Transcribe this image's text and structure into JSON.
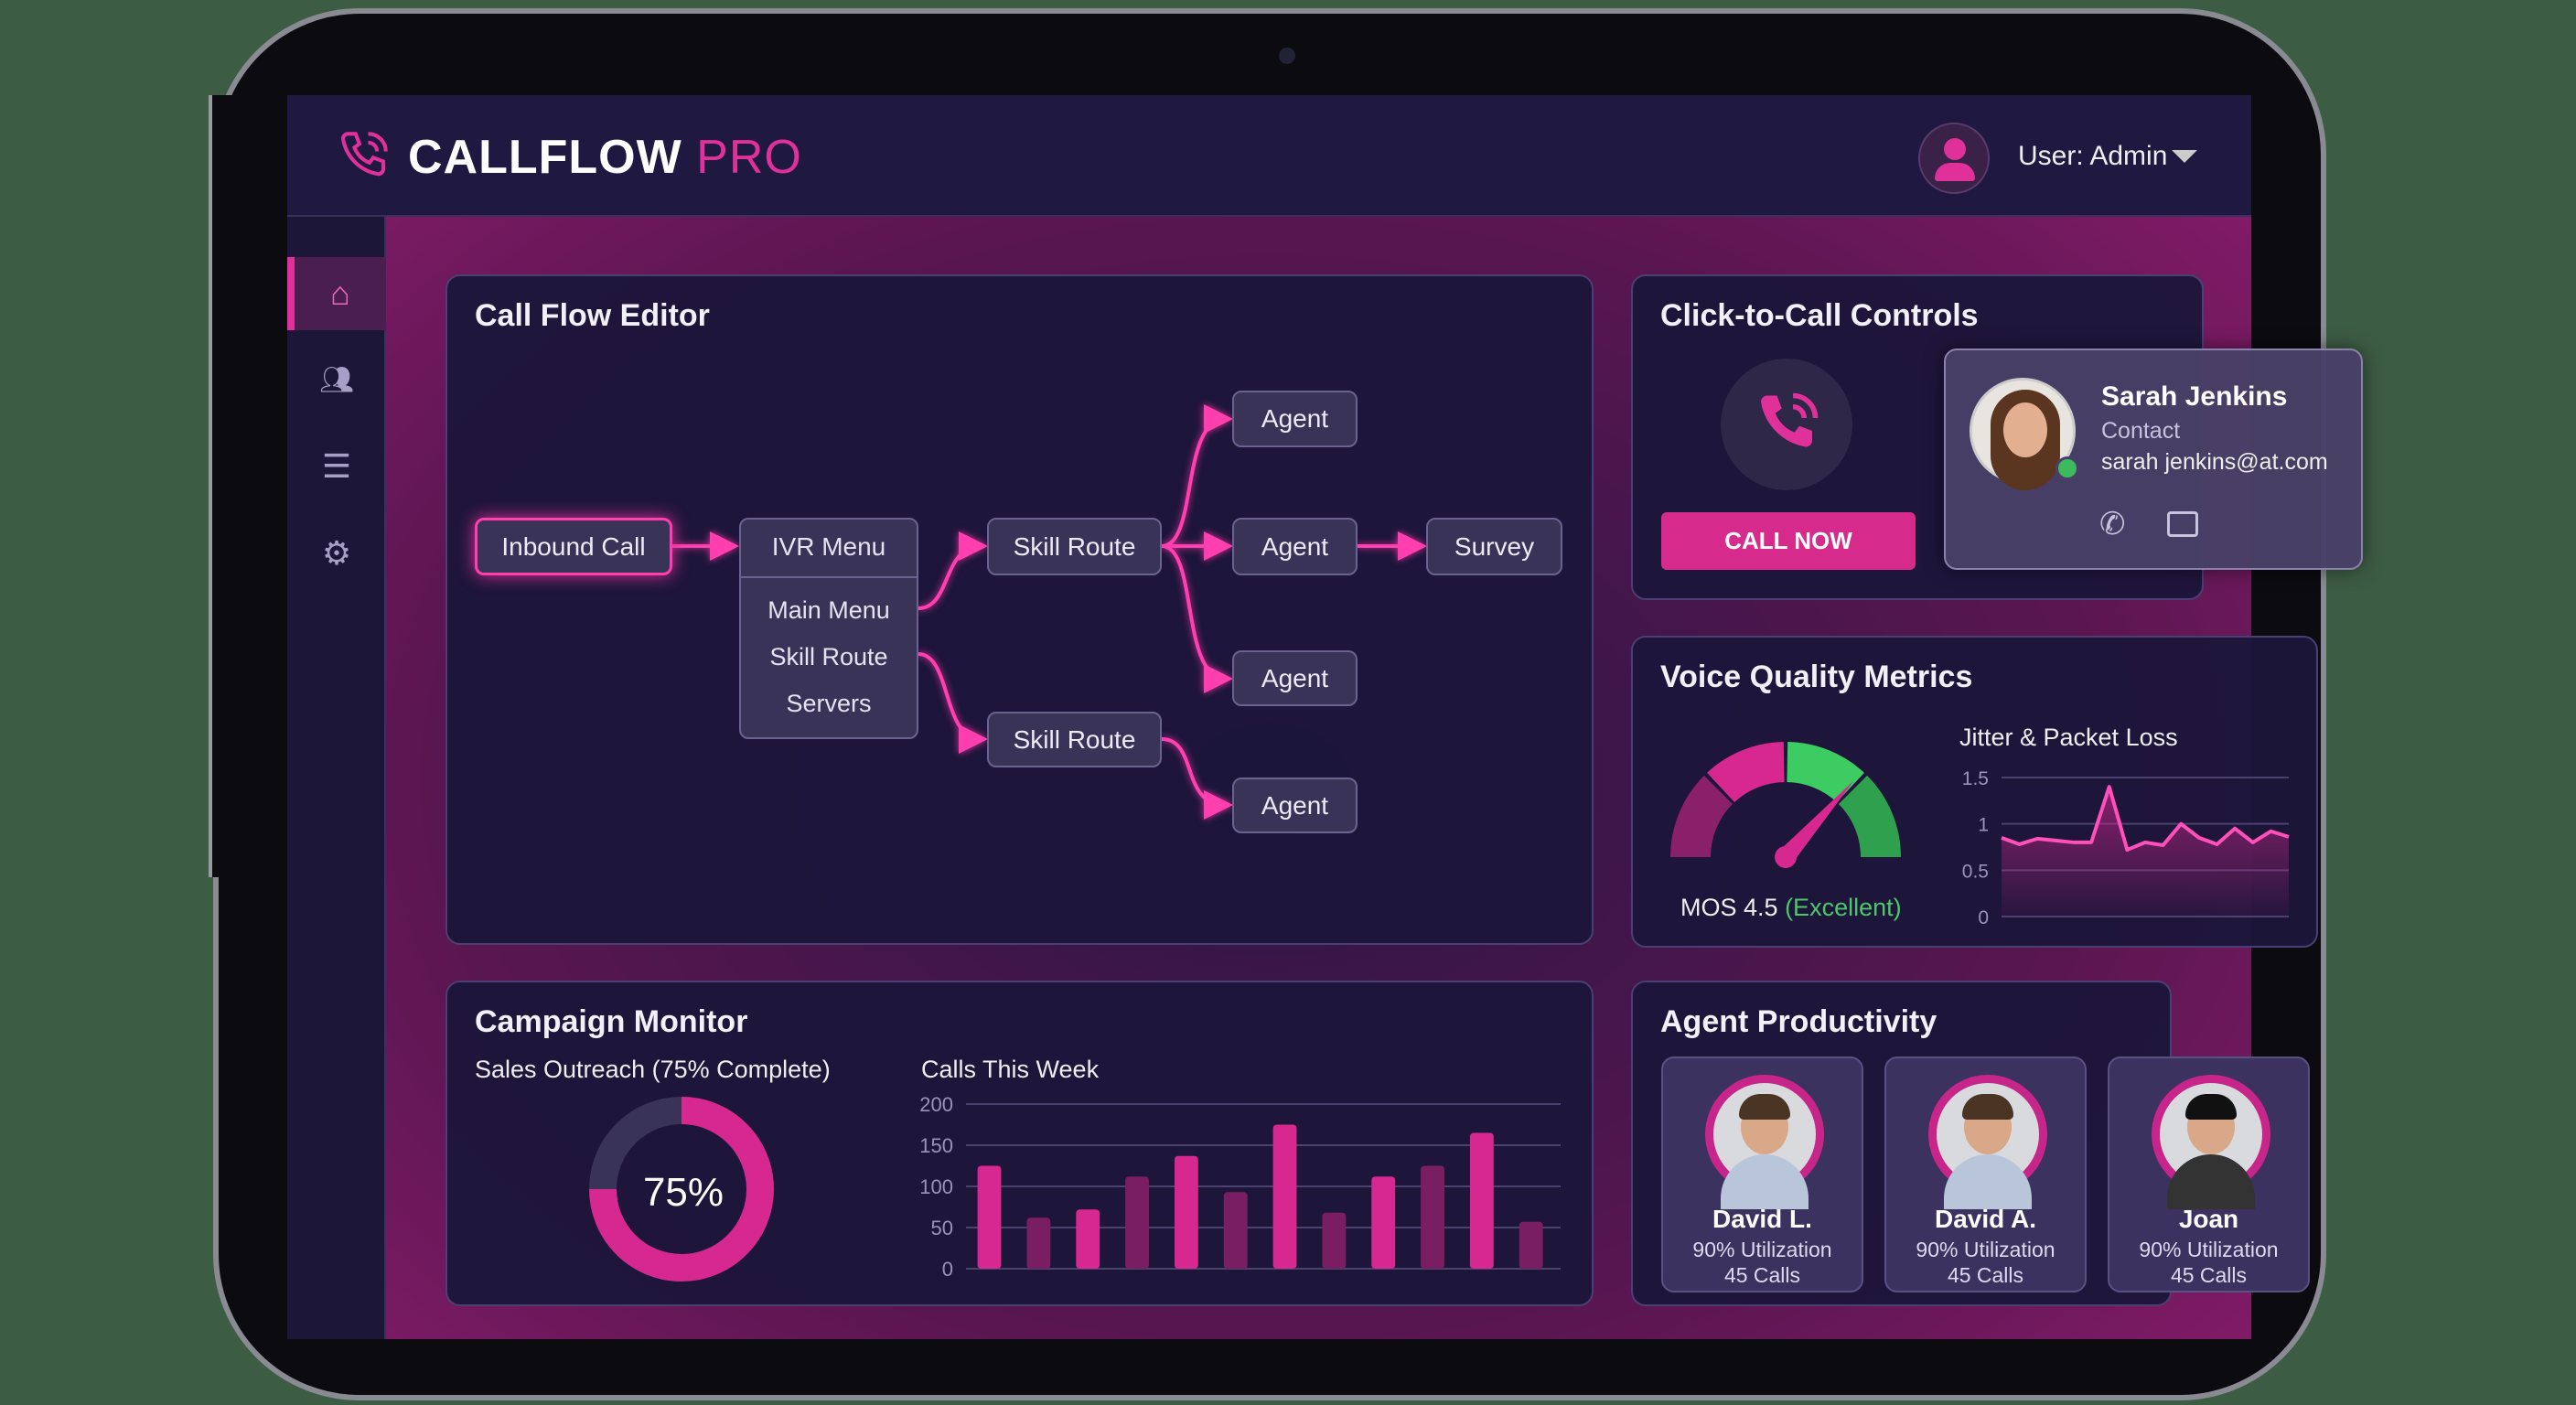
{
  "app": {
    "brand": "CALLFLOW",
    "brand_suffix": "PRO",
    "user_label": "User: Admin",
    "logo_icon": "phone-waves-icon"
  },
  "sidebar": {
    "items": [
      {
        "name": "home",
        "icon": "home-icon",
        "active": true
      },
      {
        "name": "users",
        "icon": "users-icon"
      },
      {
        "name": "list",
        "icon": "list-icon"
      },
      {
        "name": "settings",
        "icon": "gear-icon"
      }
    ]
  },
  "colors": {
    "accent": "#e0319a",
    "green": "#3dbb5c",
    "panel": "#1c163a"
  },
  "flow": {
    "title": "Call Flow Editor",
    "inbound": "Inbound Call",
    "ivr": "IVR Menu",
    "ivr_items": [
      "Main Menu",
      "Skill Route",
      "Servers"
    ],
    "skill1": "Skill Route",
    "skill2": "Skill Route",
    "agents": [
      "Agent",
      "Agent",
      "Agent",
      "Agent"
    ],
    "survey": "Survey"
  },
  "click_to_call": {
    "title": "Click-to-Call Controls",
    "button": "CALL NOW",
    "contact": {
      "name": "Sarah Jenkins",
      "role": "Contact",
      "email": "sarah jenkins@at.com",
      "status": "online"
    }
  },
  "voice": {
    "title": "Voice Quality Metrics",
    "mos_label": "MOS 4.5",
    "mos_rating": "(Excellent)",
    "mos_value": 4.5
  },
  "campaign": {
    "title": "Campaign Monitor",
    "subtitle": "Sales Outreach (75% Complete)",
    "percent_label": "75%",
    "progress": 75
  },
  "agents": {
    "title": "Agent Productivity",
    "list": [
      {
        "name": "David L.",
        "util": "90% Utilization",
        "calls": "45 Calls"
      },
      {
        "name": "David A.",
        "util": "90% Utilization",
        "calls": "45 Calls"
      },
      {
        "name": "Joan",
        "util": "90% Utilization",
        "calls": "45 Calls"
      }
    ]
  },
  "chart_data": [
    {
      "type": "bar",
      "title": "Calls This Week",
      "ylim": [
        0,
        200
      ],
      "yticks": [
        "0",
        "50",
        "100",
        "150",
        "200"
      ],
      "grid": true,
      "values": [
        125,
        62,
        72,
        112,
        137,
        93,
        175,
        68,
        112,
        125,
        165,
        57
      ]
    },
    {
      "type": "area",
      "title": "Jitter & Packet Loss",
      "ylim": [
        0,
        1.5
      ],
      "yticks": [
        "0",
        "0.5",
        "1",
        "1.5"
      ],
      "grid": true,
      "values": [
        0.85,
        0.78,
        0.84,
        0.82,
        0.8,
        0.8,
        1.4,
        0.72,
        0.8,
        0.77,
        1.0,
        0.85,
        0.78,
        0.95,
        0.8,
        0.92,
        0.86
      ]
    }
  ]
}
